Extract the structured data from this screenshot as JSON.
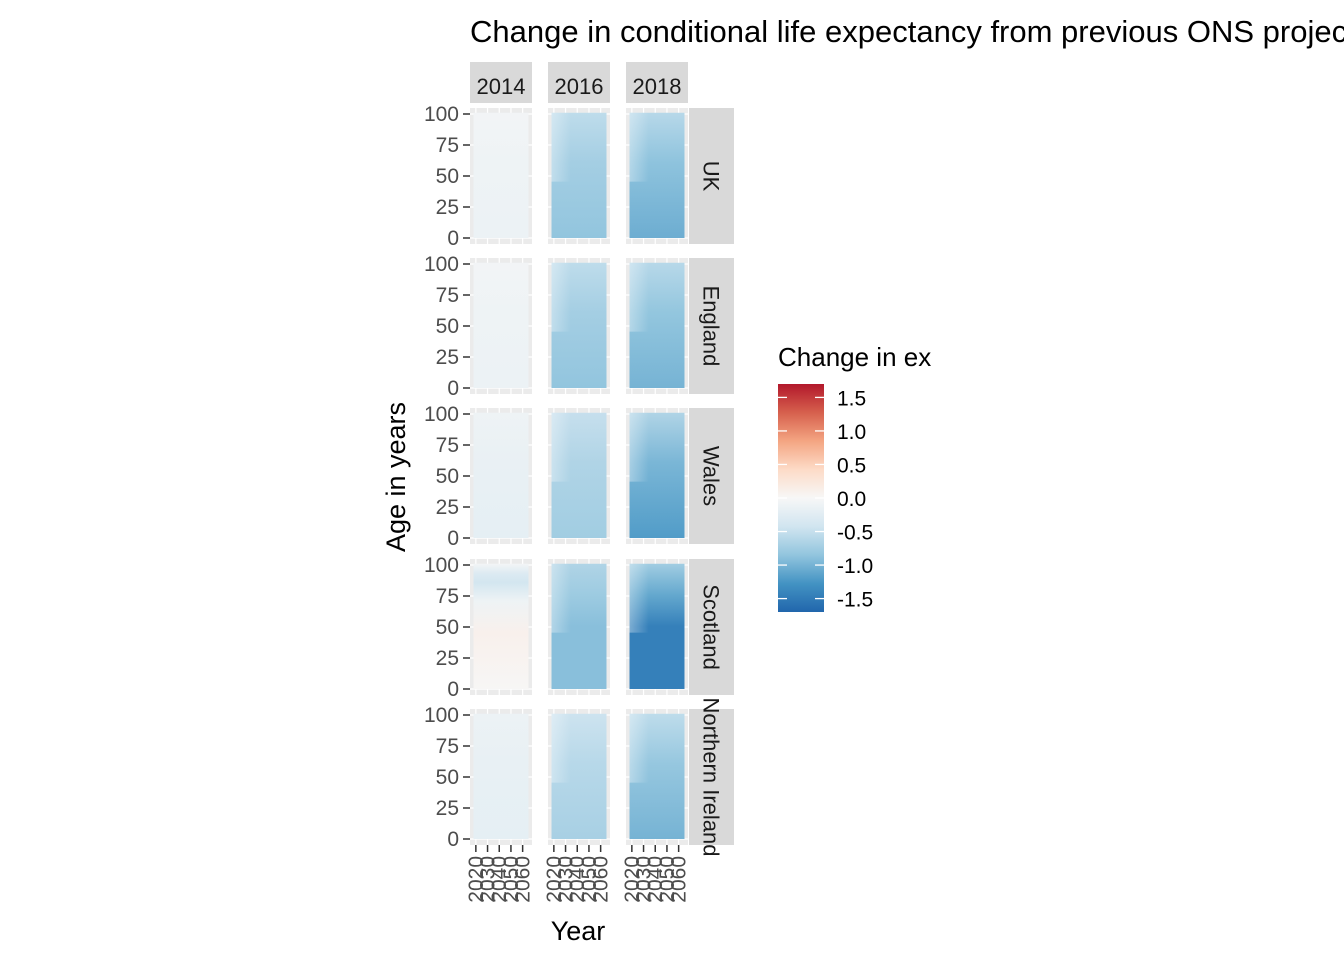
{
  "chart_data": {
    "type": "heatmap",
    "title": "Change in conditional life expectancy from previous ONS projection",
    "xlabel": "Year",
    "ylabel": "Age in years",
    "facet_columns": [
      "2014",
      "2016",
      "2018"
    ],
    "facet_rows": [
      "UK",
      "England",
      "Wales",
      "Scotland",
      "Northern Ireland"
    ],
    "x_ticks": [
      "2020",
      "2030",
      "2040",
      "2050",
      "2060"
    ],
    "xlim": [
      2015,
      2068
    ],
    "y_ticks": [
      "0",
      "25",
      "50",
      "75",
      "100"
    ],
    "ylim": [
      0,
      100
    ],
    "legend": {
      "title": "Change in ex",
      "placement": "right",
      "ticks": [
        "1.5",
        "1.0",
        "0.5",
        "0.0",
        "-0.5",
        "-1.0",
        "-1.5"
      ],
      "range": [
        -1.7,
        1.7
      ],
      "colors": [
        "#2166ac",
        "#4393c3",
        "#92c5de",
        "#d1e5f0",
        "#f7f7f7",
        "#fddbc7",
        "#f4a582",
        "#d6604d",
        "#b2182b"
      ]
    },
    "approx_cell_values": [
      {
        "row": "UK",
        "col": "2014",
        "young": -0.12,
        "old": -0.06
      },
      {
        "row": "UK",
        "col": "2016",
        "young": -0.85,
        "old": -0.55
      },
      {
        "row": "UK",
        "col": "2018",
        "young": -1.05,
        "old": -0.6
      },
      {
        "row": "England",
        "col": "2014",
        "young": -0.12,
        "old": -0.06
      },
      {
        "row": "England",
        "col": "2016",
        "young": -0.85,
        "old": -0.55
      },
      {
        "row": "England",
        "col": "2018",
        "young": -1.0,
        "old": -0.6
      },
      {
        "row": "Wales",
        "col": "2014",
        "young": -0.2,
        "old": -0.1
      },
      {
        "row": "Wales",
        "col": "2016",
        "young": -0.75,
        "old": -0.5
      },
      {
        "row": "Wales",
        "col": "2018",
        "young": -1.2,
        "old": -0.65
      },
      {
        "row": "Scotland",
        "col": "2014",
        "young": 0.05,
        "old": -0.35
      },
      {
        "row": "Scotland",
        "col": "2016",
        "young": -0.9,
        "old": -0.65
      },
      {
        "row": "Scotland",
        "col": "2018",
        "young": -1.45,
        "old": -0.75
      },
      {
        "row": "Northern Ireland",
        "col": "2014",
        "young": -0.2,
        "old": -0.12
      },
      {
        "row": "Northern Ireland",
        "col": "2016",
        "young": -0.7,
        "old": -0.45
      },
      {
        "row": "Northern Ireland",
        "col": "2018",
        "young": -1.0,
        "old": -0.55
      }
    ]
  }
}
